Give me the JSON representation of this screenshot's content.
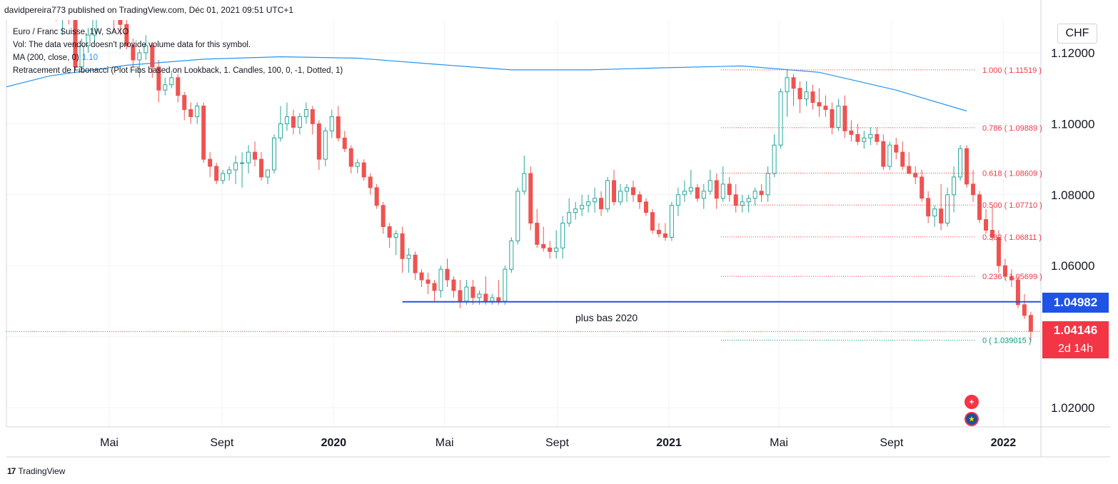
{
  "header": {
    "publisher_line": "davidpereira773 published on TradingView.com, Déc 01, 2021 09:51 UTC+1"
  },
  "legend": {
    "symbol_line": "Euro / Franc Suisse, 1W, SAXO",
    "vol_line": "Vol: The data vendor doesn't provide volume data for this symbol.",
    "ma_line": "MA (200, close, 0)",
    "ma_value": "1.10",
    "fib_line": "Retracement de Fibonacci (Plot Fibs based on Lookback, 1. Candles, 100, 0, -1, Dotted, 1)"
  },
  "currency_badge": "CHF",
  "price_labels": {
    "low_2020": "1.04982",
    "last_price": "1.04146",
    "countdown": "2d 14h"
  },
  "annotation": "plus bas 2020",
  "footer": {
    "brand": "TradingView",
    "mark": "17"
  },
  "colors": {
    "up": "#26a69a",
    "down": "#ef5350",
    "ma": "#2196f3",
    "fib": "#f23645",
    "support": "#1e53e5",
    "fib_zero": "#089981"
  },
  "icons": {
    "flag_ch": "swiss-flag-icon",
    "flag_eu": "eu-flag-icon"
  },
  "chart_data": {
    "type": "candlestick",
    "symbol": "Euro / Franc Suisse",
    "interval": "1W",
    "exchange": "SAXO",
    "ylim": [
      1.0,
      1.13
    ],
    "y_ticks": [
      "1.02000",
      "1.06000",
      "1.08000",
      "1.10000",
      "1.12000"
    ],
    "y_tick_values": [
      1.02,
      1.06,
      1.08,
      1.1,
      1.12
    ],
    "x_ticks": [
      {
        "label": "Mai",
        "date": "2019-05",
        "bold": false
      },
      {
        "label": "Sept",
        "date": "2019-09",
        "bold": false
      },
      {
        "label": "2020",
        "date": "2020-01",
        "bold": true
      },
      {
        "label": "Mai",
        "date": "2020-05",
        "bold": false
      },
      {
        "label": "Sept",
        "date": "2020-09",
        "bold": false
      },
      {
        "label": "2021",
        "date": "2021-01",
        "bold": true
      },
      {
        "label": "Mai",
        "date": "2021-05",
        "bold": false
      },
      {
        "label": "Sept",
        "date": "2021-09",
        "bold": false
      },
      {
        "label": "2022",
        "date": "2022-01",
        "bold": true
      }
    ],
    "grid": true,
    "fib_levels": [
      {
        "label": "1.000 ( 1.11519 )",
        "value": 1.11519
      },
      {
        "label": "0.786 ( 1.09889 )",
        "value": 1.09889
      },
      {
        "label": "0.618 ( 1.08609 )",
        "value": 1.08609
      },
      {
        "label": "0.500 ( 1.07710 )",
        "value": 1.0771
      },
      {
        "label": "0.382 ( 1.06811 )",
        "value": 1.06811
      },
      {
        "label": "0.236 ( 1.05699 )",
        "value": 1.05699
      },
      {
        "label": "0 ( 1.039015 )",
        "value": 1.039015
      }
    ],
    "horizontal_line": {
      "value": 1.04982,
      "from_date": "2020-03-16",
      "label": "plus bas 2020"
    },
    "last_price": 1.04146,
    "ma200": [
      {
        "date": "2018-12-10",
        "value": 1.1085
      },
      {
        "date": "2019-02-25",
        "value": 1.1135
      },
      {
        "date": "2019-05-20",
        "value": 1.1165
      },
      {
        "date": "2019-08-12",
        "value": 1.1182
      },
      {
        "date": "2019-11-04",
        "value": 1.1189
      },
      {
        "date": "2020-01-27",
        "value": 1.1185
      },
      {
        "date": "2020-04-20",
        "value": 1.1168
      },
      {
        "date": "2020-07-13",
        "value": 1.1152
      },
      {
        "date": "2020-10-05",
        "value": 1.1152
      },
      {
        "date": "2020-12-28",
        "value": 1.1158
      },
      {
        "date": "2021-03-22",
        "value": 1.1163
      },
      {
        "date": "2021-06-14",
        "value": 1.1145
      },
      {
        "date": "2021-09-06",
        "value": 1.1095
      },
      {
        "date": "2021-11-22",
        "value": 1.1036
      }
    ],
    "candles": [
      [
        "2019-03-04",
        1.133,
        1.1348,
        1.129,
        1.13
      ],
      [
        "2019-03-11",
        1.13,
        1.133,
        1.125,
        1.132
      ],
      [
        "2019-03-18",
        1.132,
        1.134,
        1.128,
        1.13
      ],
      [
        "2019-03-25",
        1.13,
        1.131,
        1.115,
        1.116
      ],
      [
        "2019-04-01",
        1.116,
        1.124,
        1.115,
        1.122
      ],
      [
        "2019-04-08",
        1.122,
        1.127,
        1.12,
        1.125
      ],
      [
        "2019-04-15",
        1.125,
        1.133,
        1.123,
        1.132
      ],
      [
        "2019-04-22",
        1.132,
        1.137,
        1.13,
        1.135
      ],
      [
        "2019-04-29",
        1.135,
        1.137,
        1.131,
        1.132
      ],
      [
        "2019-05-06",
        1.132,
        1.135,
        1.126,
        1.13
      ],
      [
        "2019-05-13",
        1.13,
        1.131,
        1.125,
        1.128
      ],
      [
        "2019-05-20",
        1.128,
        1.13,
        1.121,
        1.122
      ],
      [
        "2019-05-27",
        1.122,
        1.124,
        1.116,
        1.118
      ],
      [
        "2019-06-03",
        1.118,
        1.121,
        1.113,
        1.12
      ],
      [
        "2019-06-10",
        1.12,
        1.125,
        1.118,
        1.122
      ],
      [
        "2019-06-17",
        1.122,
        1.123,
        1.113,
        1.116
      ],
      [
        "2019-06-24",
        1.116,
        1.118,
        1.106,
        1.1095
      ],
      [
        "2019-07-01",
        1.1095,
        1.113,
        1.108,
        1.111
      ],
      [
        "2019-07-08",
        1.111,
        1.115,
        1.11,
        1.113
      ],
      [
        "2019-07-15",
        1.113,
        1.114,
        1.106,
        1.108
      ],
      [
        "2019-07-22",
        1.108,
        1.109,
        1.101,
        1.104
      ],
      [
        "2019-07-29",
        1.104,
        1.106,
        1.1,
        1.102
      ],
      [
        "2019-08-05",
        1.102,
        1.106,
        1.1,
        1.105
      ],
      [
        "2019-08-12",
        1.105,
        1.106,
        1.089,
        1.09
      ],
      [
        "2019-08-19",
        1.09,
        1.092,
        1.085,
        1.088
      ],
      [
        "2019-08-26",
        1.088,
        1.089,
        1.083,
        1.084
      ],
      [
        "2019-09-02",
        1.084,
        1.087,
        1.083,
        1.086
      ],
      [
        "2019-09-09",
        1.086,
        1.088,
        1.084,
        1.087
      ],
      [
        "2019-09-16",
        1.087,
        1.091,
        1.083,
        1.089
      ],
      [
        "2019-09-23",
        1.089,
        1.092,
        1.082,
        1.089
      ],
      [
        "2019-09-30",
        1.089,
        1.094,
        1.086,
        1.092
      ],
      [
        "2019-10-07",
        1.092,
        1.095,
        1.088,
        1.09
      ],
      [
        "2019-10-14",
        1.09,
        1.092,
        1.084,
        1.085
      ],
      [
        "2019-10-21",
        1.085,
        1.087,
        1.083,
        1.087
      ],
      [
        "2019-10-28",
        1.087,
        1.097,
        1.086,
        1.096
      ],
      [
        "2019-11-04",
        1.096,
        1.105,
        1.095,
        1.1
      ],
      [
        "2019-11-11",
        1.1,
        1.106,
        1.098,
        1.102
      ],
      [
        "2019-11-18",
        1.102,
        1.104,
        1.097,
        1.099
      ],
      [
        "2019-11-25",
        1.099,
        1.103,
        1.097,
        1.102
      ],
      [
        "2019-12-02",
        1.102,
        1.106,
        1.1,
        1.104
      ],
      [
        "2019-12-09",
        1.104,
        1.105,
        1.097,
        1.1
      ],
      [
        "2019-12-16",
        1.1,
        1.101,
        1.087,
        1.09
      ],
      [
        "2019-12-23",
        1.09,
        1.099,
        1.088,
        1.098
      ],
      [
        "2019-12-30",
        1.098,
        1.104,
        1.096,
        1.102
      ],
      [
        "2020-01-06",
        1.102,
        1.105,
        1.095,
        1.096
      ],
      [
        "2020-01-13",
        1.096,
        1.098,
        1.092,
        1.093
      ],
      [
        "2020-01-20",
        1.093,
        1.094,
        1.086,
        1.088
      ],
      [
        "2020-01-27",
        1.088,
        1.09,
        1.086,
        1.089
      ],
      [
        "2020-02-03",
        1.089,
        1.09,
        1.084,
        1.085
      ],
      [
        "2020-02-10",
        1.085,
        1.086,
        1.08,
        1.082
      ],
      [
        "2020-02-17",
        1.082,
        1.083,
        1.076,
        1.077
      ],
      [
        "2020-02-24",
        1.077,
        1.078,
        1.069,
        1.071
      ],
      [
        "2020-03-02",
        1.071,
        1.072,
        1.065,
        1.068
      ],
      [
        "2020-03-09",
        1.068,
        1.07,
        1.063,
        1.069
      ],
      [
        "2020-03-16",
        1.069,
        1.071,
        1.058,
        1.062
      ],
      [
        "2020-03-23",
        1.062,
        1.065,
        1.058,
        1.063
      ],
      [
        "2020-03-30",
        1.063,
        1.064,
        1.056,
        1.058
      ],
      [
        "2020-04-06",
        1.058,
        1.059,
        1.054,
        1.056
      ],
      [
        "2020-04-13",
        1.056,
        1.058,
        1.052,
        1.055
      ],
      [
        "2020-04-20",
        1.055,
        1.056,
        1.05,
        1.053
      ],
      [
        "2020-04-27",
        1.053,
        1.06,
        1.051,
        1.059
      ],
      [
        "2020-05-04",
        1.059,
        1.062,
        1.054,
        1.056
      ],
      [
        "2020-05-11",
        1.056,
        1.057,
        1.051,
        1.053
      ],
      [
        "2020-05-18",
        1.053,
        1.056,
        1.048,
        1.05
      ],
      [
        "2020-05-25",
        1.05,
        1.056,
        1.049,
        1.054
      ],
      [
        "2020-06-01",
        1.054,
        1.056,
        1.049,
        1.051
      ],
      [
        "2020-06-08",
        1.051,
        1.053,
        1.049,
        1.052
      ],
      [
        "2020-06-15",
        1.052,
        1.057,
        1.049,
        1.05
      ],
      [
        "2020-06-22",
        1.05,
        1.052,
        1.049,
        1.051
      ],
      [
        "2020-06-29",
        1.051,
        1.056,
        1.049,
        1.05
      ],
      [
        "2020-07-06",
        1.05,
        1.06,
        1.049,
        1.059
      ],
      [
        "2020-07-13",
        1.059,
        1.068,
        1.058,
        1.067
      ],
      [
        "2020-07-20",
        1.067,
        1.082,
        1.066,
        1.081
      ],
      [
        "2020-07-27",
        1.081,
        1.091,
        1.08,
        1.086
      ],
      [
        "2020-08-03",
        1.086,
        1.088,
        1.07,
        1.072
      ],
      [
        "2020-08-10",
        1.072,
        1.076,
        1.065,
        1.066
      ],
      [
        "2020-08-17",
        1.066,
        1.071,
        1.064,
        1.065
      ],
      [
        "2020-08-24",
        1.065,
        1.067,
        1.062,
        1.064
      ],
      [
        "2020-08-31",
        1.064,
        1.07,
        1.062,
        1.065
      ],
      [
        "2020-09-07",
        1.065,
        1.074,
        1.062,
        1.072
      ],
      [
        "2020-09-14",
        1.072,
        1.079,
        1.071,
        1.075
      ],
      [
        "2020-09-21",
        1.075,
        1.078,
        1.073,
        1.076
      ],
      [
        "2020-09-28",
        1.076,
        1.08,
        1.074,
        1.077
      ],
      [
        "2020-10-05",
        1.077,
        1.08,
        1.075,
        1.078
      ],
      [
        "2020-10-12",
        1.078,
        1.082,
        1.075,
        1.079
      ],
      [
        "2020-10-19",
        1.079,
        1.081,
        1.074,
        1.076
      ],
      [
        "2020-10-26",
        1.076,
        1.085,
        1.075,
        1.084
      ],
      [
        "2020-11-02",
        1.084,
        1.087,
        1.077,
        1.078
      ],
      [
        "2020-11-09",
        1.078,
        1.083,
        1.077,
        1.081
      ],
      [
        "2020-11-16",
        1.081,
        1.083,
        1.078,
        1.082
      ],
      [
        "2020-11-23",
        1.082,
        1.084,
        1.078,
        1.08
      ],
      [
        "2020-11-30",
        1.08,
        1.081,
        1.076,
        1.078
      ],
      [
        "2020-12-07",
        1.078,
        1.079,
        1.074,
        1.075
      ],
      [
        "2020-12-14",
        1.075,
        1.076,
        1.069,
        1.07
      ],
      [
        "2020-12-21",
        1.07,
        1.072,
        1.068,
        1.069
      ],
      [
        "2020-12-28",
        1.069,
        1.072,
        1.067,
        1.068
      ],
      [
        "2021-01-04",
        1.068,
        1.078,
        1.067,
        1.077
      ],
      [
        "2021-01-11",
        1.077,
        1.082,
        1.074,
        1.08
      ],
      [
        "2021-01-18",
        1.08,
        1.084,
        1.078,
        1.081
      ],
      [
        "2021-01-25",
        1.081,
        1.087,
        1.08,
        1.082
      ],
      [
        "2021-02-01",
        1.082,
        1.083,
        1.078,
        1.079
      ],
      [
        "2021-02-08",
        1.079,
        1.083,
        1.076,
        1.081
      ],
      [
        "2021-02-15",
        1.081,
        1.087,
        1.08,
        1.084
      ],
      [
        "2021-02-22",
        1.084,
        1.086,
        1.076,
        1.079
      ],
      [
        "2021-03-01",
        1.079,
        1.088,
        1.078,
        1.083
      ],
      [
        "2021-03-08",
        1.083,
        1.085,
        1.078,
        1.08
      ],
      [
        "2021-03-15",
        1.08,
        1.083,
        1.075,
        1.077
      ],
      [
        "2021-03-22",
        1.077,
        1.08,
        1.075,
        1.078
      ],
      [
        "2021-03-29",
        1.078,
        1.08,
        1.075,
        1.079
      ],
      [
        "2021-04-05",
        1.079,
        1.082,
        1.077,
        1.081
      ],
      [
        "2021-04-12",
        1.081,
        1.083,
        1.078,
        1.08
      ],
      [
        "2021-04-19",
        1.08,
        1.088,
        1.078,
        1.086
      ],
      [
        "2021-04-26",
        1.086,
        1.097,
        1.085,
        1.094
      ],
      [
        "2021-05-03",
        1.094,
        1.11,
        1.093,
        1.109
      ],
      [
        "2021-05-10",
        1.109,
        1.1152,
        1.102,
        1.113
      ],
      [
        "2021-05-17",
        1.113,
        1.114,
        1.105,
        1.11
      ],
      [
        "2021-05-24",
        1.11,
        1.112,
        1.103,
        1.107
      ],
      [
        "2021-05-31",
        1.107,
        1.112,
        1.105,
        1.109
      ],
      [
        "2021-06-07",
        1.109,
        1.111,
        1.104,
        1.106
      ],
      [
        "2021-06-14",
        1.106,
        1.11,
        1.102,
        1.105
      ],
      [
        "2021-06-21",
        1.105,
        1.108,
        1.102,
        1.104
      ],
      [
        "2021-06-28",
        1.104,
        1.106,
        1.097,
        1.099
      ],
      [
        "2021-07-05",
        1.099,
        1.107,
        1.098,
        1.105
      ],
      [
        "2021-07-12",
        1.105,
        1.108,
        1.096,
        1.098
      ],
      [
        "2021-07-19",
        1.098,
        1.101,
        1.095,
        1.097
      ],
      [
        "2021-07-26",
        1.097,
        1.1,
        1.094,
        1.095
      ],
      [
        "2021-08-02",
        1.095,
        1.098,
        1.093,
        1.096
      ],
      [
        "2021-08-09",
        1.096,
        1.099,
        1.094,
        1.097
      ],
      [
        "2021-08-16",
        1.097,
        1.099,
        1.094,
        1.095
      ],
      [
        "2021-08-23",
        1.095,
        1.097,
        1.087,
        1.088
      ],
      [
        "2021-08-30",
        1.088,
        1.095,
        1.087,
        1.094
      ],
      [
        "2021-09-06",
        1.094,
        1.096,
        1.09,
        1.092
      ],
      [
        "2021-09-13",
        1.092,
        1.095,
        1.087,
        1.088
      ],
      [
        "2021-09-20",
        1.088,
        1.092,
        1.086,
        1.086
      ],
      [
        "2021-09-27",
        1.086,
        1.088,
        1.083,
        1.085
      ],
      [
        "2021-10-04",
        1.085,
        1.087,
        1.078,
        1.079
      ],
      [
        "2021-10-11",
        1.079,
        1.081,
        1.072,
        1.074
      ],
      [
        "2021-10-18",
        1.074,
        1.077,
        1.071,
        1.076
      ],
      [
        "2021-10-25",
        1.076,
        1.083,
        1.07,
        1.072
      ],
      [
        "2021-11-01",
        1.072,
        1.082,
        1.071,
        1.08
      ],
      [
        "2021-11-08",
        1.08,
        1.088,
        1.075,
        1.085
      ],
      [
        "2021-11-15",
        1.085,
        1.094,
        1.084,
        1.093
      ],
      [
        "2021-11-22",
        1.093,
        1.094,
        1.082,
        1.083
      ],
      [
        "2021-11-29",
        1.083,
        1.087,
        1.078,
        1.08
      ],
      [
        "2021-12-06",
        1.08,
        1.081,
        1.072,
        1.073
      ],
      [
        "2021-12-13",
        1.073,
        1.076,
        1.069,
        1.07
      ],
      [
        "2021-12-20",
        1.07,
        1.077,
        1.067,
        1.068
      ],
      [
        "2021-12-27",
        1.068,
        1.07,
        1.058,
        1.06
      ],
      [
        "2022-01-03",
        1.06,
        1.062,
        1.056,
        1.057
      ],
      [
        "2022-01-10",
        1.057,
        1.059,
        1.054,
        1.056
      ],
      [
        "2022-01-17",
        1.056,
        1.057,
        1.048,
        1.049
      ],
      [
        "2022-01-24",
        1.049,
        1.052,
        1.045,
        1.046
      ],
      [
        "2022-01-31",
        1.046,
        1.047,
        1.039,
        1.0415
      ]
    ]
  }
}
